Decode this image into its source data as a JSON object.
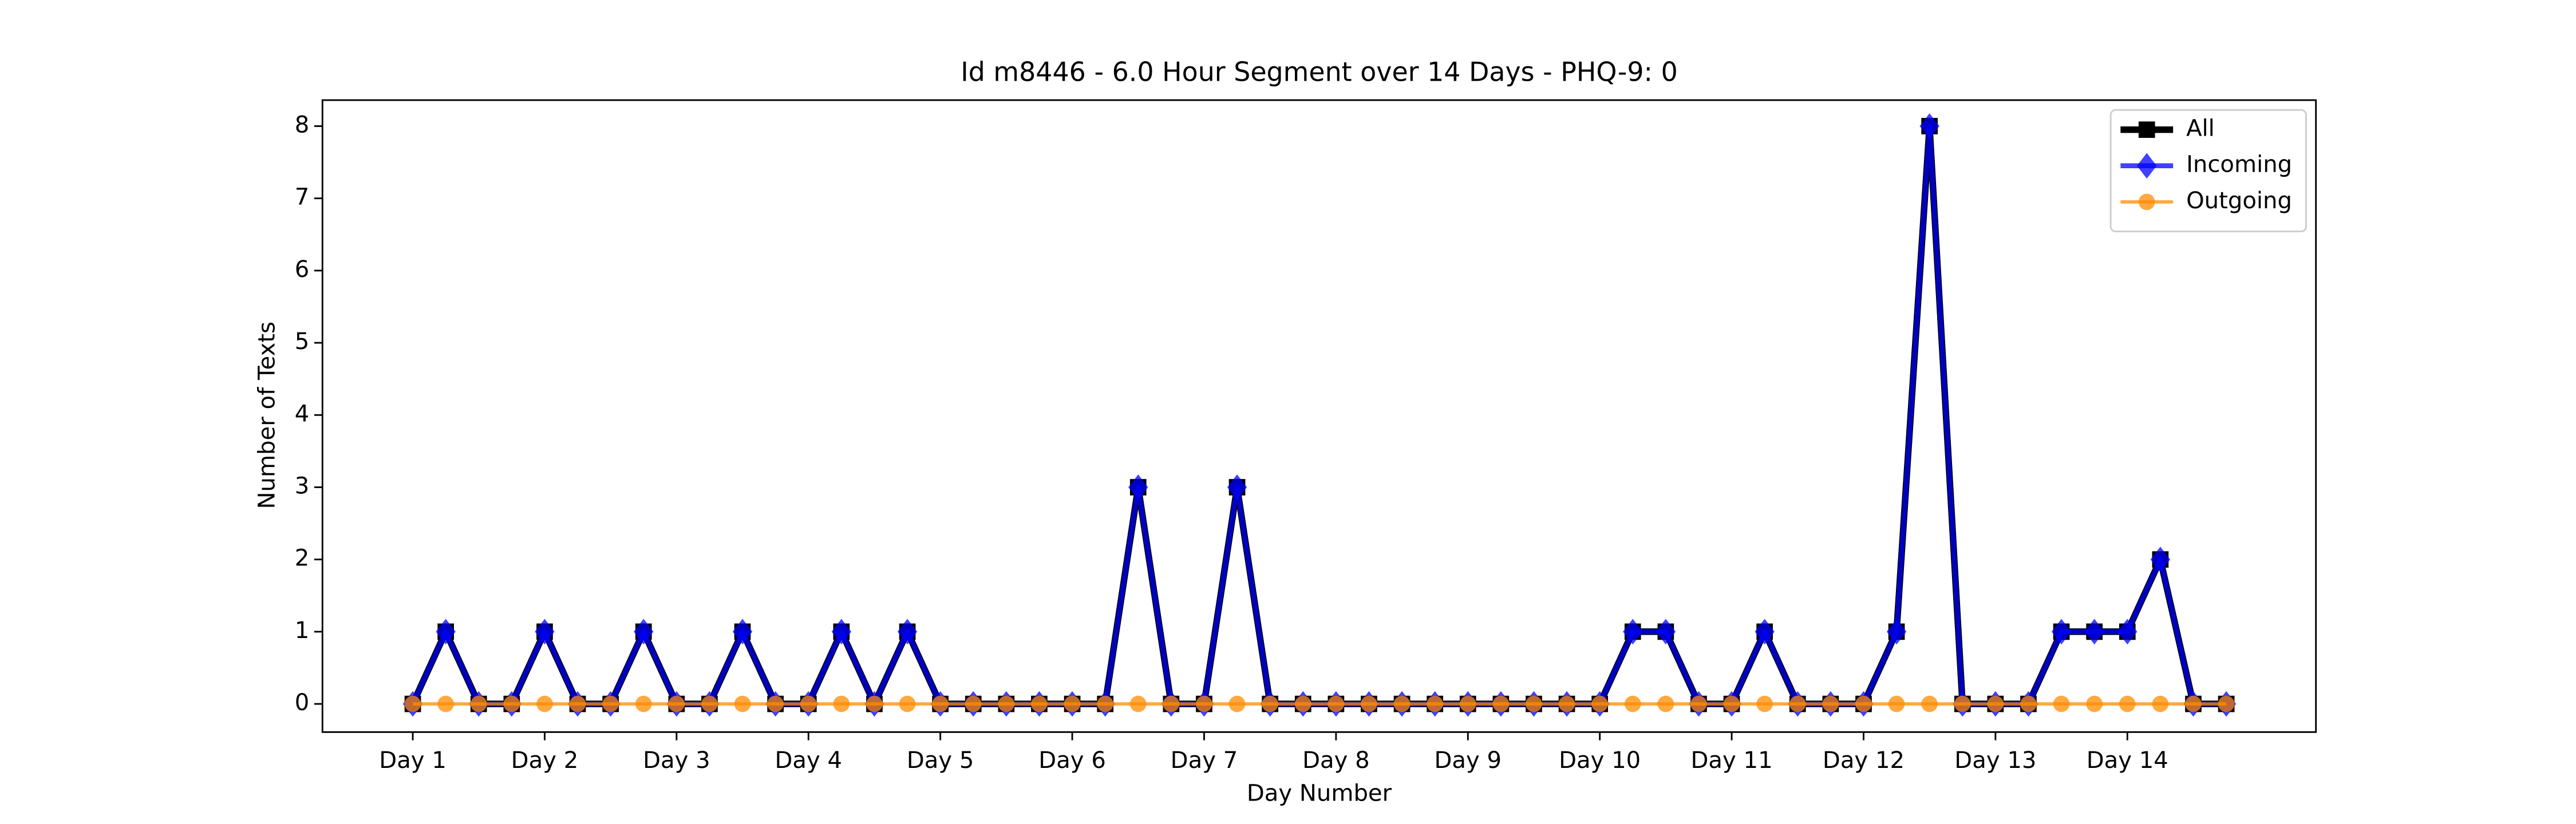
{
  "chart_data": {
    "type": "line",
    "title": "Id m8446 - 6.0 Hour Segment over 14 Days - PHQ-9: 0",
    "xlabel": "Day Number",
    "ylabel": "Number of Texts",
    "categories": [
      "Day 1",
      null,
      null,
      null,
      "Day 2",
      null,
      null,
      null,
      "Day 3",
      null,
      null,
      null,
      "Day 4",
      null,
      null,
      null,
      "Day 5",
      null,
      null,
      null,
      "Day 6",
      null,
      null,
      null,
      "Day 7",
      null,
      null,
      null,
      "Day 8",
      null,
      null,
      null,
      "Day 9",
      null,
      null,
      null,
      "Day 10",
      null,
      null,
      null,
      "Day 11",
      null,
      null,
      null,
      "Day 12",
      null,
      null,
      null,
      "Day 13",
      null,
      null,
      null,
      "Day 14",
      null,
      null,
      null
    ],
    "series": [
      {
        "name": "All",
        "color": "#000000",
        "marker": "square",
        "values": [
          0,
          1,
          0,
          0,
          1,
          0,
          0,
          1,
          0,
          0,
          1,
          0,
          0,
          1,
          0,
          1,
          0,
          0,
          0,
          0,
          0,
          0,
          3,
          0,
          0,
          3,
          0,
          0,
          0,
          0,
          0,
          0,
          0,
          0,
          0,
          0,
          0,
          1,
          1,
          0,
          0,
          1,
          0,
          0,
          0,
          1,
          8,
          0,
          0,
          0,
          1,
          1,
          1,
          2,
          0,
          0
        ]
      },
      {
        "name": "Incoming",
        "color": "#0000ff",
        "marker": "diamond",
        "values": [
          0,
          1,
          0,
          0,
          1,
          0,
          0,
          1,
          0,
          0,
          1,
          0,
          0,
          1,
          0,
          1,
          0,
          0,
          0,
          0,
          0,
          0,
          3,
          0,
          0,
          3,
          0,
          0,
          0,
          0,
          0,
          0,
          0,
          0,
          0,
          0,
          0,
          1,
          1,
          0,
          0,
          1,
          0,
          0,
          0,
          1,
          8,
          0,
          0,
          0,
          1,
          1,
          1,
          2,
          0,
          0
        ]
      },
      {
        "name": "Outgoing",
        "color": "#ff8c00",
        "marker": "circle",
        "values": [
          0,
          0,
          0,
          0,
          0,
          0,
          0,
          0,
          0,
          0,
          0,
          0,
          0,
          0,
          0,
          0,
          0,
          0,
          0,
          0,
          0,
          0,
          0,
          0,
          0,
          0,
          0,
          0,
          0,
          0,
          0,
          0,
          0,
          0,
          0,
          0,
          0,
          0,
          0,
          0,
          0,
          0,
          0,
          0,
          0,
          0,
          0,
          0,
          0,
          0,
          0,
          0,
          0,
          0,
          0,
          0
        ]
      }
    ],
    "ylim": [
      -0.39,
      8.36
    ],
    "yticks": [
      0,
      1,
      2,
      3,
      4,
      5,
      6,
      7,
      8
    ],
    "legend": "upper right",
    "grid": false
  }
}
